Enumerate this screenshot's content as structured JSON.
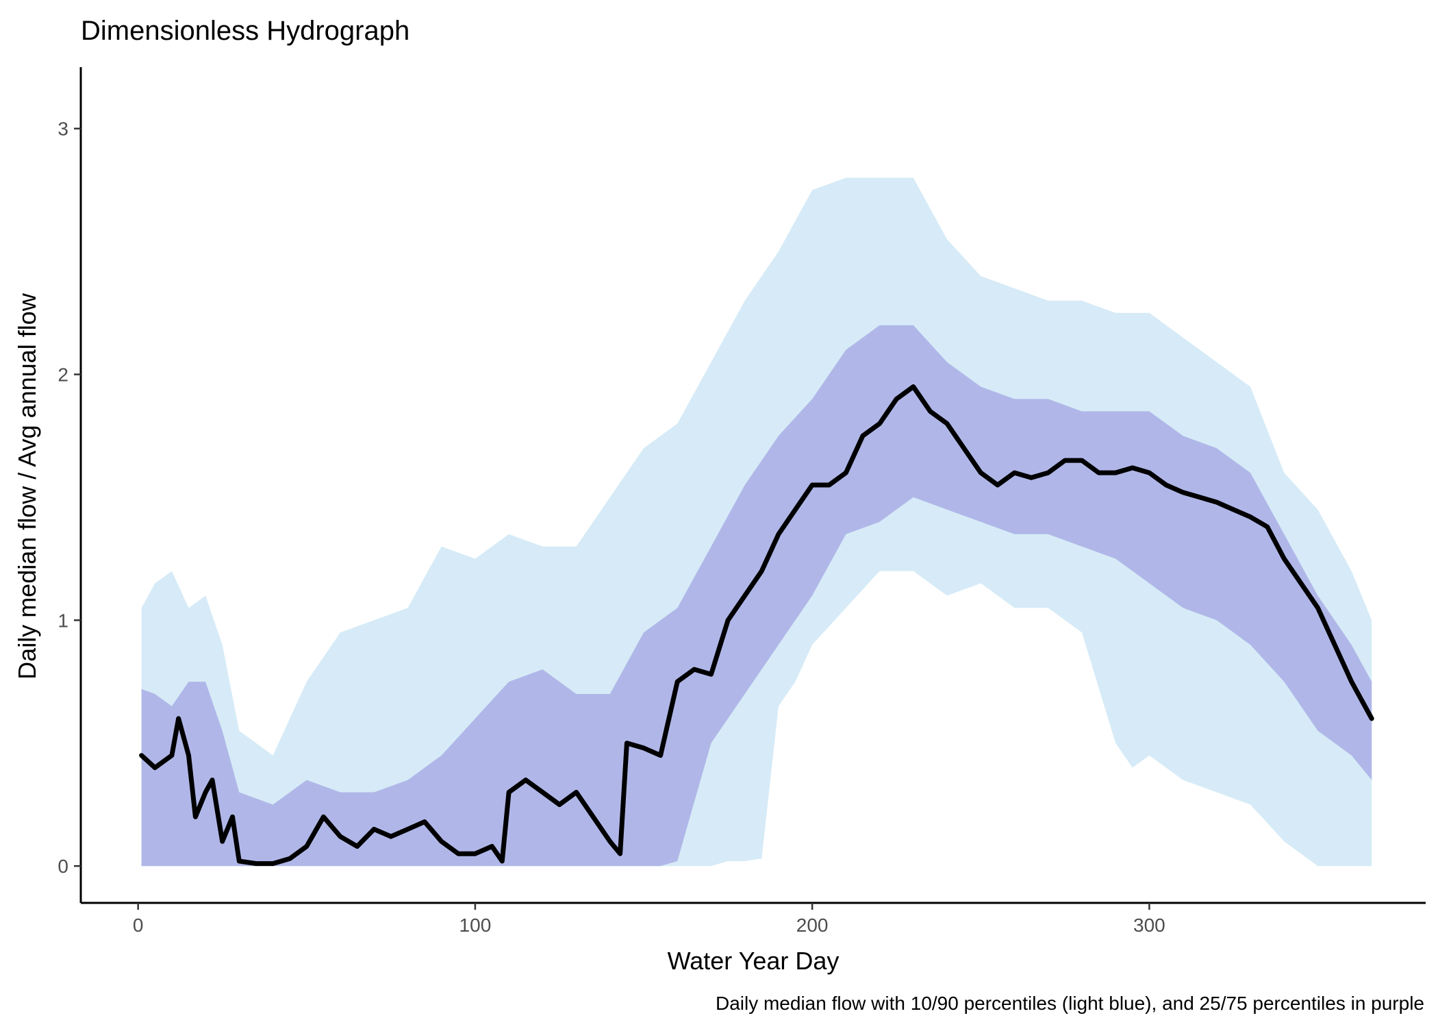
{
  "chart_data": {
    "type": "area",
    "title": "Dimensionless Hydrograph",
    "xlabel": "Water Year Day",
    "ylabel": "Daily median flow / Avg annual flow",
    "caption": "Daily median flow with 10/90 percentiles (light blue), and 25/75 percentiles in purple",
    "xlim": [
      -17,
      382
    ],
    "ylim": [
      -0.15,
      3.25
    ],
    "x_ticks": [
      0,
      100,
      200,
      300
    ],
    "y_ticks": [
      0,
      1,
      2,
      3
    ],
    "x_tick_labels": [
      "0",
      "100",
      "200",
      "300"
    ],
    "y_tick_labels": [
      "0",
      "1",
      "2",
      "3"
    ],
    "grid": false,
    "legend": "none",
    "colors": {
      "p10_p90": "#d6ebf7",
      "p25_p75": "#b0b7e8",
      "median": "#000000",
      "axis": "#000000",
      "tick_text": "#4d4d4d"
    },
    "series": [
      {
        "key": "p10",
        "x": [
          1,
          10,
          20,
          30,
          40,
          50,
          60,
          70,
          80,
          90,
          100,
          110,
          120,
          130,
          140,
          150,
          160,
          170,
          175,
          180,
          185,
          190,
          195,
          200,
          210,
          220,
          230,
          240,
          250,
          260,
          270,
          280,
          290,
          295,
          300,
          310,
          320,
          330,
          340,
          350,
          360,
          366
        ],
        "values": [
          0,
          0,
          0,
          0,
          0,
          0,
          0,
          0,
          0,
          0,
          0,
          0,
          0,
          0,
          0,
          0,
          0,
          0,
          0.02,
          0.02,
          0.03,
          0.65,
          0.75,
          0.9,
          1.05,
          1.2,
          1.2,
          1.1,
          1.15,
          1.05,
          1.05,
          0.95,
          0.5,
          0.4,
          0.45,
          0.35,
          0.3,
          0.25,
          0.1,
          0,
          0,
          0
        ]
      },
      {
        "key": "p25",
        "x": [
          1,
          10,
          20,
          30,
          40,
          50,
          60,
          70,
          80,
          90,
          100,
          110,
          120,
          130,
          140,
          150,
          155,
          160,
          170,
          180,
          190,
          200,
          210,
          220,
          230,
          240,
          250,
          260,
          270,
          280,
          290,
          300,
          310,
          320,
          330,
          340,
          350,
          360,
          366
        ],
        "values": [
          0,
          0,
          0,
          0,
          0,
          0,
          0,
          0,
          0,
          0,
          0,
          0,
          0,
          0,
          0,
          0,
          0,
          0.02,
          0.5,
          0.7,
          0.9,
          1.1,
          1.35,
          1.4,
          1.5,
          1.45,
          1.4,
          1.35,
          1.35,
          1.3,
          1.25,
          1.15,
          1.05,
          1.0,
          0.9,
          0.75,
          0.55,
          0.45,
          0.35
        ]
      },
      {
        "key": "p75",
        "x": [
          1,
          5,
          10,
          15,
          20,
          25,
          30,
          40,
          50,
          60,
          70,
          80,
          90,
          100,
          110,
          120,
          130,
          140,
          150,
          160,
          170,
          180,
          190,
          200,
          210,
          220,
          230,
          240,
          250,
          260,
          270,
          280,
          290,
          300,
          310,
          320,
          330,
          340,
          350,
          360,
          366
        ],
        "values": [
          0.72,
          0.7,
          0.65,
          0.75,
          0.75,
          0.55,
          0.3,
          0.25,
          0.35,
          0.3,
          0.3,
          0.35,
          0.45,
          0.6,
          0.75,
          0.8,
          0.7,
          0.7,
          0.95,
          1.05,
          1.3,
          1.55,
          1.75,
          1.9,
          2.1,
          2.2,
          2.2,
          2.05,
          1.95,
          1.9,
          1.9,
          1.85,
          1.85,
          1.85,
          1.75,
          1.7,
          1.6,
          1.35,
          1.1,
          0.9,
          0.75
        ]
      },
      {
        "key": "p90",
        "x": [
          1,
          5,
          10,
          15,
          20,
          25,
          30,
          40,
          50,
          60,
          70,
          80,
          90,
          100,
          110,
          120,
          130,
          140,
          150,
          160,
          170,
          180,
          190,
          200,
          210,
          220,
          230,
          240,
          250,
          260,
          270,
          280,
          290,
          300,
          310,
          320,
          330,
          340,
          350,
          360,
          366
        ],
        "values": [
          1.05,
          1.15,
          1.2,
          1.05,
          1.1,
          0.9,
          0.55,
          0.45,
          0.75,
          0.95,
          1.0,
          1.05,
          1.3,
          1.25,
          1.35,
          1.3,
          1.3,
          1.5,
          1.7,
          1.8,
          2.05,
          2.3,
          2.5,
          2.75,
          2.8,
          2.8,
          2.8,
          2.55,
          2.4,
          2.35,
          2.3,
          2.3,
          2.25,
          2.25,
          2.15,
          2.05,
          1.95,
          1.6,
          1.45,
          1.2,
          1.0
        ]
      },
      {
        "key": "median",
        "x": [
          1,
          5,
          10,
          12,
          15,
          17,
          20,
          22,
          25,
          28,
          30,
          35,
          40,
          45,
          50,
          55,
          60,
          65,
          70,
          75,
          80,
          85,
          90,
          95,
          100,
          105,
          108,
          110,
          115,
          120,
          125,
          130,
          135,
          140,
          143,
          145,
          150,
          155,
          160,
          165,
          170,
          175,
          180,
          185,
          190,
          195,
          200,
          205,
          210,
          215,
          220,
          225,
          230,
          235,
          240,
          245,
          250,
          255,
          260,
          265,
          270,
          275,
          280,
          285,
          290,
          295,
          300,
          305,
          310,
          315,
          320,
          325,
          330,
          335,
          340,
          345,
          350,
          355,
          360,
          366
        ],
        "values": [
          0.45,
          0.4,
          0.45,
          0.6,
          0.45,
          0.2,
          0.3,
          0.35,
          0.1,
          0.2,
          0.02,
          0.01,
          0.01,
          0.03,
          0.08,
          0.2,
          0.12,
          0.08,
          0.15,
          0.12,
          0.15,
          0.18,
          0.1,
          0.05,
          0.05,
          0.08,
          0.02,
          0.3,
          0.35,
          0.3,
          0.25,
          0.3,
          0.2,
          0.1,
          0.05,
          0.5,
          0.48,
          0.45,
          0.75,
          0.8,
          0.78,
          1.0,
          1.1,
          1.2,
          1.35,
          1.45,
          1.55,
          1.55,
          1.6,
          1.75,
          1.8,
          1.9,
          1.95,
          1.85,
          1.8,
          1.7,
          1.6,
          1.55,
          1.6,
          1.58,
          1.6,
          1.65,
          1.65,
          1.6,
          1.6,
          1.62,
          1.6,
          1.55,
          1.52,
          1.5,
          1.48,
          1.45,
          1.42,
          1.38,
          1.25,
          1.15,
          1.05,
          0.9,
          0.75,
          0.6
        ]
      }
    ]
  }
}
